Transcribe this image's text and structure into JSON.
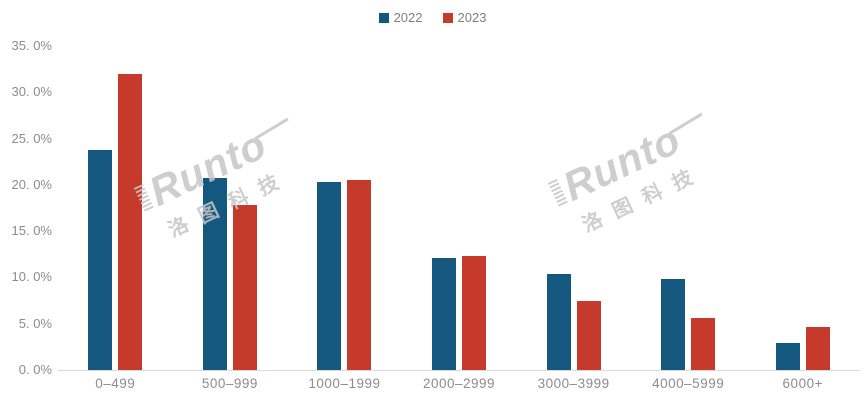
{
  "chart_data": {
    "type": "bar",
    "title": "",
    "categories": [
      "0–499",
      "500–999",
      "1000–1999",
      "2000–2999",
      "3000–3999",
      "4000–5999",
      "6000+"
    ],
    "series": [
      {
        "name": "2022",
        "color": "#14587f",
        "values": [
          23.8,
          20.7,
          20.3,
          12.1,
          10.4,
          9.8,
          2.9
        ]
      },
      {
        "name": "2023",
        "color": "#c63a2b",
        "values": [
          32.0,
          17.8,
          20.5,
          12.3,
          7.5,
          5.6,
          4.6
        ]
      }
    ],
    "xlabel": "",
    "ylabel": "",
    "ylim": [
      0,
      35
    ],
    "y_tick_step": 5,
    "y_tick_labels": [
      "0. 0%",
      "5. 0%",
      "10. 0%",
      "15. 0%",
      "20. 0%",
      "25. 0%",
      "30. 0%",
      "35. 0%"
    ],
    "grid": "off",
    "legend_position": "top-center",
    "axis_line_color": "#d9d9d9",
    "tick_label_color": "#8c8c8c"
  },
  "watermark": {
    "brand": "Runto",
    "chinese": "洛图科技"
  }
}
